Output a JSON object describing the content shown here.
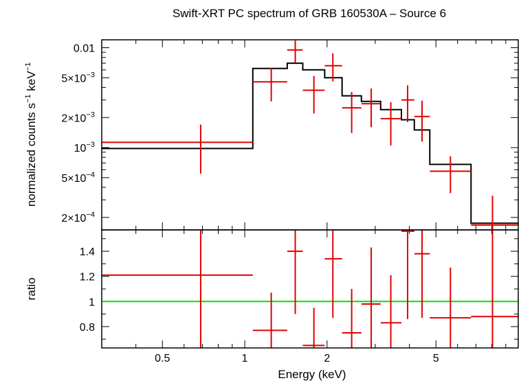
{
  "chart_data": [
    {
      "panel": "spectrum",
      "type": "scatter",
      "title": "Swift-XRT PC spectrum of GRB 160530A – Source 6",
      "ylabel_parts": [
        "normalized counts s",
        "−1",
        " keV",
        "−1"
      ],
      "xscale": "log",
      "yscale": "log",
      "xlim": [
        0.3,
        10
      ],
      "ylim": [
        0.00015,
        0.012
      ],
      "yticks": [
        {
          "value": 0.01,
          "label": "0.01"
        },
        {
          "value": 0.005,
          "label": "5×10",
          "exp": "−3"
        },
        {
          "value": 0.002,
          "label": "2×10",
          "exp": "−3"
        },
        {
          "value": 0.001,
          "label": "10",
          "exp": "−3"
        },
        {
          "value": 0.0005,
          "label": "5×10",
          "exp": "−4"
        },
        {
          "value": 0.0002,
          "label": "2×10",
          "exp": "−4"
        }
      ],
      "data": {
        "color": "#e00000",
        "points": [
          {
            "x": 0.69,
            "xlo": 0.3,
            "xhi": 1.07,
            "y": 0.00113,
            "ylo": 0.00055,
            "yhi": 0.0017
          },
          {
            "x": 1.25,
            "xlo": 1.07,
            "xhi": 1.43,
            "y": 0.00455,
            "ylo": 0.0029,
            "yhi": 0.0063
          },
          {
            "x": 1.53,
            "xlo": 1.43,
            "xhi": 1.63,
            "y": 0.0095,
            "ylo": 0.0071,
            "yhi": 0.0118
          },
          {
            "x": 1.79,
            "xlo": 1.63,
            "xhi": 1.96,
            "y": 0.00375,
            "ylo": 0.0022,
            "yhi": 0.0052
          },
          {
            "x": 2.1,
            "xlo": 1.96,
            "xhi": 2.27,
            "y": 0.0066,
            "ylo": 0.0046,
            "yhi": 0.0088
          },
          {
            "x": 2.46,
            "xlo": 2.27,
            "xhi": 2.67,
            "y": 0.0025,
            "ylo": 0.0014,
            "yhi": 0.0036
          },
          {
            "x": 2.9,
            "xlo": 2.67,
            "xhi": 3.14,
            "y": 0.00275,
            "ylo": 0.0016,
            "yhi": 0.0039
          },
          {
            "x": 3.42,
            "xlo": 3.14,
            "xhi": 3.74,
            "y": 0.00195,
            "ylo": 0.00105,
            "yhi": 0.00285
          },
          {
            "x": 3.94,
            "xlo": 3.74,
            "xhi": 4.17,
            "y": 0.003,
            "ylo": 0.0018,
            "yhi": 0.0042
          },
          {
            "x": 4.45,
            "xlo": 4.17,
            "xhi": 4.75,
            "y": 0.00205,
            "ylo": 0.00115,
            "yhi": 0.00295
          },
          {
            "x": 5.65,
            "xlo": 4.75,
            "xhi": 6.72,
            "y": 0.00058,
            "ylo": 0.00035,
            "yhi": 0.00082
          },
          {
            "x": 8.05,
            "xlo": 6.72,
            "xhi": 10.0,
            "y": 0.000168,
            "ylo": 0.00015,
            "yhi": 0.00033
          }
        ]
      },
      "model": {
        "color": "#000000",
        "edges": [
          0.3,
          1.07,
          1.43,
          1.63,
          1.96,
          2.27,
          2.67,
          3.14,
          3.74,
          4.17,
          4.75,
          6.72,
          10.0
        ],
        "values": [
          0.00098,
          0.0062,
          0.007,
          0.006,
          0.005,
          0.0033,
          0.0029,
          0.0024,
          0.0019,
          0.0015,
          0.00068,
          0.000175
        ]
      }
    },
    {
      "panel": "ratio",
      "type": "scatter",
      "xlabel": "Energy (keV)",
      "ylabel": "ratio",
      "xscale": "log",
      "xlim": [
        0.3,
        10
      ],
      "ylim": [
        0.63,
        1.57
      ],
      "xticks": [
        {
          "value": 0.5,
          "label": "0.5"
        },
        {
          "value": 1,
          "label": "1"
        },
        {
          "value": 2,
          "label": "2"
        },
        {
          "value": 5,
          "label": "5"
        }
      ],
      "yticks": [
        {
          "value": 0.8,
          "label": "0.8"
        },
        {
          "value": 1.0,
          "label": "1"
        },
        {
          "value": 1.2,
          "label": "1.2"
        },
        {
          "value": 1.4,
          "label": "1.4"
        }
      ],
      "reference": {
        "value": 1.0,
        "color": "#00e000"
      },
      "data": {
        "color": "#e00000",
        "points": [
          {
            "x": 0.69,
            "xlo": 0.3,
            "xhi": 1.07,
            "y": 1.21,
            "ylo": 0.63,
            "yhi": 1.57
          },
          {
            "x": 1.25,
            "xlo": 1.07,
            "xhi": 1.43,
            "y": 0.77,
            "ylo": 0.63,
            "yhi": 1.07
          },
          {
            "x": 1.53,
            "xlo": 1.43,
            "xhi": 1.63,
            "y": 1.4,
            "ylo": 0.9,
            "yhi": 1.57
          },
          {
            "x": 1.79,
            "xlo": 1.63,
            "xhi": 1.96,
            "y": 0.65,
            "ylo": 0.63,
            "yhi": 0.95
          },
          {
            "x": 2.1,
            "xlo": 1.96,
            "xhi": 2.27,
            "y": 1.34,
            "ylo": 0.87,
            "yhi": 1.57
          },
          {
            "x": 2.46,
            "xlo": 2.27,
            "xhi": 2.67,
            "y": 0.75,
            "ylo": 0.63,
            "yhi": 1.1
          },
          {
            "x": 2.9,
            "xlo": 2.67,
            "xhi": 3.14,
            "y": 0.98,
            "ylo": 0.63,
            "yhi": 1.43
          },
          {
            "x": 3.42,
            "xlo": 3.14,
            "xhi": 3.74,
            "y": 0.83,
            "ylo": 0.63,
            "yhi": 1.21
          },
          {
            "x": 3.94,
            "xlo": 3.74,
            "xhi": 4.17,
            "y": 1.56,
            "ylo": 0.86,
            "yhi": 1.57
          },
          {
            "x": 4.45,
            "xlo": 4.17,
            "xhi": 4.75,
            "y": 1.38,
            "ylo": 0.87,
            "yhi": 1.57
          },
          {
            "x": 5.65,
            "xlo": 4.75,
            "xhi": 6.72,
            "y": 0.87,
            "ylo": 0.63,
            "yhi": 1.27
          },
          {
            "x": 8.05,
            "xlo": 6.72,
            "xhi": 10.0,
            "y": 0.88,
            "ylo": 0.63,
            "yhi": 1.57
          }
        ]
      }
    }
  ]
}
